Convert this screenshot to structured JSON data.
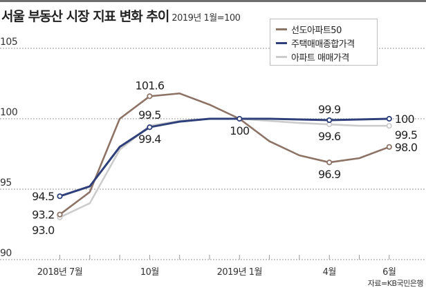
{
  "header": {
    "title": "서울 부동산 시장 지표 변화 추이",
    "subtitle": "2019년 1월=100"
  },
  "source": "자료=KB국민은행",
  "chart_data": {
    "type": "line",
    "title": "서울 부동산 시장 지표 변화 추이",
    "subtitle": "2019년 1월=100",
    "xlabel": "",
    "ylabel": "",
    "x": [
      "2018-07",
      "2018-08",
      "2018-09",
      "2018-10",
      "2018-11",
      "2018-12",
      "2019-01",
      "2019-02",
      "2019-03",
      "2019-04",
      "2019-05",
      "2019-06"
    ],
    "x_tick_labels": [
      {
        "index": 0,
        "label": "2018년 7월"
      },
      {
        "index": 3,
        "label": "10월"
      },
      {
        "index": 6,
        "label": "2019년 1월"
      },
      {
        "index": 9,
        "label": "4월"
      },
      {
        "index": 11,
        "label": "6월"
      }
    ],
    "ylim": [
      90,
      105
    ],
    "y_ticks": [
      90,
      95,
      100,
      105
    ],
    "grid": true,
    "legend_position": "top-right",
    "series": [
      {
        "name": "선도아파트50",
        "color": "#8c7366",
        "values": [
          93.2,
          94.8,
          100.0,
          101.6,
          101.8,
          101.0,
          100.0,
          98.4,
          97.4,
          96.9,
          97.2,
          98.0
        ],
        "labels": [
          {
            "index": 0,
            "text": "93.2",
            "pos": "left"
          },
          {
            "index": 3,
            "text": "101.6",
            "pos": "above"
          },
          {
            "index": 9,
            "text": "96.9",
            "pos": "below"
          },
          {
            "index": 11,
            "text": "98.0",
            "pos": "right"
          }
        ],
        "markers": [
          0,
          3,
          9,
          11
        ]
      },
      {
        "name": "주택매매종합가격",
        "color": "#2e3f7a",
        "values": [
          94.5,
          95.2,
          98.0,
          99.4,
          99.8,
          100.0,
          100.0,
          100.0,
          99.95,
          99.9,
          99.95,
          100.0
        ],
        "labels": [
          {
            "index": 0,
            "text": "94.5",
            "pos": "left"
          },
          {
            "index": 3,
            "text": "99.4",
            "pos": "below"
          },
          {
            "index": 6,
            "text": "100",
            "pos": "below"
          },
          {
            "index": 9,
            "text": "99.9",
            "pos": "above"
          },
          {
            "index": 11,
            "text": "100",
            "pos": "right"
          }
        ],
        "markers": [
          0,
          3,
          6,
          9,
          11
        ]
      },
      {
        "name": "아파트 매매가격",
        "color": "#cccccc",
        "values": [
          93.0,
          94.0,
          97.8,
          99.5,
          99.85,
          100.0,
          100.0,
          99.85,
          99.7,
          99.6,
          99.5,
          99.5
        ],
        "labels": [
          {
            "index": 0,
            "text": "93.0",
            "pos": "left-below"
          },
          {
            "index": 3,
            "text": "99.5",
            "pos": "above"
          },
          {
            "index": 9,
            "text": "99.6",
            "pos": "below"
          },
          {
            "index": 11,
            "text": "99.5",
            "pos": "right-below"
          }
        ],
        "markers": [
          0,
          9,
          11
        ]
      }
    ]
  }
}
